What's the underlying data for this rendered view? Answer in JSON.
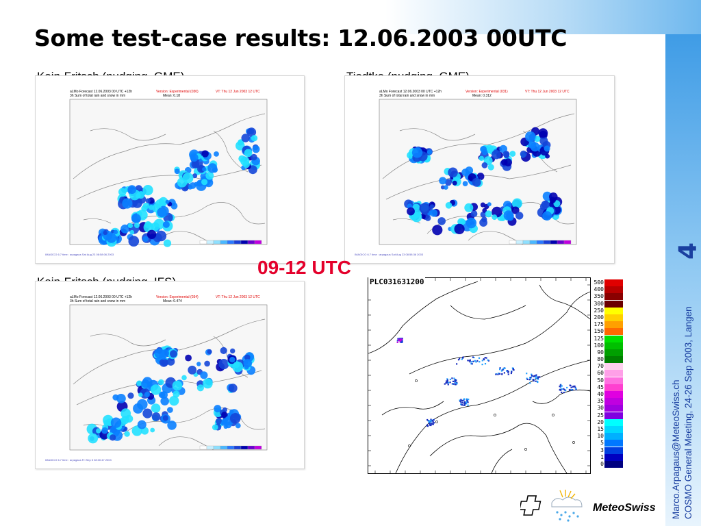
{
  "slide": {
    "title": "Some test-case results: 12.06.2003 00UTC",
    "page_number": "4",
    "time_window": "09-12 UTC",
    "author_email": "Marco.Arpagaus@MeteoSwiss.ch",
    "meeting": "COSMO General Meeting, 24-26 Sep 2003, Langen"
  },
  "panels": [
    {
      "label": "Kain-Fritsch (nudging, GME)",
      "header_left_1": "aLMo Forecast 12.06.2003 00 UTC +12h",
      "header_left_2": "3h Sum of total rain and snow in mm",
      "version": "Version: Experimental (030)",
      "valid_time": "VT: Thu 12 Jun 2003 12 UTC",
      "mean": "Mean: 0.18",
      "footnote": "IMAGICO 6.7 time : arpagaus Sat Aug 23 08:58:06 2003"
    },
    {
      "label": "Tiedtke (nudging, GME)",
      "header_left_1": "aLMo Forecast 12.06.2003 00 UTC +12h",
      "header_left_2": "3h Sum of total rain and snow in mm",
      "version": "Version: Experimental (031)",
      "valid_time": "VT: Thu 12 Jun 2003 12 UTC",
      "mean": "Mean: 0.312",
      "footnote": "IMAGICO 6.7 time : arpagaus Sat Aug 23 08:58:36 2003"
    },
    {
      "label": "Kain-Fritsch (nudging, IFS)",
      "header_left_1": "aLMo Forecast 12.06.2003 00 UTC +12h",
      "header_left_2": "3h Sum of total rain and snow in mm",
      "version": "Version: Experimental (034)",
      "valid_time": "VT: Thu 12 Jun 2003 12 UTC",
      "mean": "Mean: 0.474",
      "footnote": "IMAGICO 6.7 time : arpagaus Fri Sep 5 08:30:47 2003"
    }
  ],
  "radar": {
    "id": "PLC031631200",
    "scale_labels": [
      "500",
      "400",
      "350",
      "300",
      "250",
      "200",
      "175",
      "150",
      "125",
      "100",
      "90",
      "80",
      "70",
      "60",
      "50",
      "45",
      "40",
      "35",
      "30",
      "25",
      "20",
      "15",
      "10",
      "5",
      "3",
      "1",
      "0"
    ],
    "scale_colors": [
      "#e00000",
      "#b80000",
      "#8a0000",
      "#6a0000",
      "#ffff00",
      "#ffd000",
      "#ffa000",
      "#ff6a00",
      "#00e000",
      "#00c000",
      "#00a000",
      "#008000",
      "#ffd0f0",
      "#ffa0e8",
      "#ff70e0",
      "#ff40d0",
      "#e000e0",
      "#c000e0",
      "#a000e0",
      "#8000e0",
      "#00ffff",
      "#00d8ff",
      "#00b0ff",
      "#0078ff",
      "#0040e0",
      "#0000c0",
      "#000080"
    ]
  },
  "logo": {
    "name": "MeteoSwiss"
  }
}
